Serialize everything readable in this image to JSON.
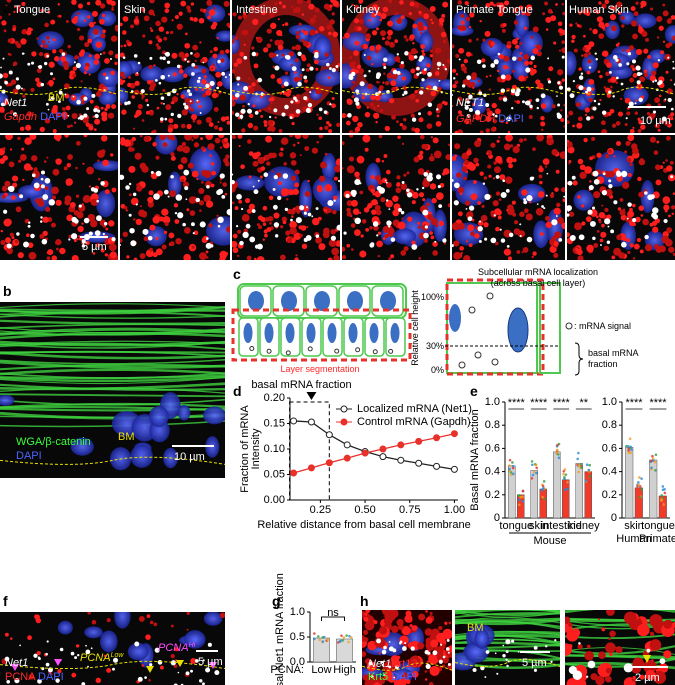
{
  "panels": {
    "a": {
      "label": "a",
      "columns": [
        "Tongue",
        "Skin",
        "Intestine",
        "Kidney",
        "Primate Tongue",
        "Human Skin"
      ],
      "mouse_stain": {
        "probe": "Net1",
        "control": "Gapdh",
        "nuclear": "DAPI"
      },
      "primate_stain": {
        "probe": "NET1",
        "control": "GAPDH",
        "nuclear": "DAPI"
      },
      "bm": "BM",
      "scale_top": "10 µm",
      "scale_bottom": "5 µm"
    },
    "b": {
      "label": "b",
      "stain": "WGA/β-catenin",
      "nuclear": "DAPI",
      "bm": "BM",
      "scale": "10 µm"
    },
    "c": {
      "label": "c",
      "title": "Subcellular mRNA localization",
      "subtitle": "(across basal cell layer)",
      "segmentation": "Layer segmentation",
      "height_label": "Relative cell height",
      "levels": [
        "100%",
        "30%",
        "0%"
      ],
      "signal_legend": ": mRNA signal",
      "fraction_label": [
        "basal mRNA",
        "fraction"
      ]
    },
    "d": {
      "label": "d"
    },
    "e": {
      "label": "e"
    },
    "f": {
      "label": "f",
      "probe": "Net1",
      "marker": "PCNA",
      "nuclear": "DAPI",
      "low": {
        "name": "PCNA",
        "sup": "Low"
      },
      "high": {
        "name": "PCNA",
        "sup": "Hi"
      },
      "scale": "5 µm"
    },
    "g": {
      "label": "g"
    },
    "h": {
      "label": "h",
      "probe": "Net1",
      "marker1": "Krt13",
      "marker2": "Krt5",
      "nuclear": "DAPI",
      "bm": "BM",
      "scale1": "5 µm",
      "scale2": "2 µm"
    }
  },
  "chart_data": [
    {
      "type": "line",
      "annotation": "basal mRNA fraction",
      "ylabel": [
        "Fraction of mRNA",
        "Intensity"
      ],
      "xlabel": "Relative distance from basal cell membrane",
      "x": [
        0.1,
        0.2,
        0.3,
        0.4,
        0.5,
        0.6,
        0.7,
        0.8,
        0.9,
        1.0
      ],
      "series": [
        {
          "name": "Localized mRNA (Net1)",
          "color": "#222222",
          "marker": "open",
          "values": [
            0.155,
            0.153,
            0.128,
            0.108,
            0.095,
            0.085,
            0.078,
            0.072,
            0.066,
            0.06
          ]
        },
        {
          "name": "Control mRNA (Gapdh)",
          "color": "#e8312b",
          "marker": "filled",
          "values": [
            0.053,
            0.063,
            0.073,
            0.082,
            0.092,
            0.1,
            0.108,
            0.115,
            0.122,
            0.13
          ]
        }
      ],
      "xlim": [
        0.08,
        1.02
      ],
      "xticks": [
        0.25,
        {
          "value": 0.5,
          "label": "0.50"
        },
        0.75,
        {
          "value": 1,
          "label": "1.00"
        }
      ],
      "ylim": [
        0,
        0.2
      ],
      "yticks": [
        {
          "value": 0,
          "label": "0.00"
        },
        0.05,
        {
          "value": 0.1,
          "label": "0.10"
        },
        0.15,
        {
          "value": 0.2,
          "label": "0.20"
        }
      ],
      "highlight_x": [
        0.1,
        0.3
      ]
    },
    {
      "type": "bar",
      "ylabel": "Basal mRNA fraction",
      "group_label": "Mouse",
      "categories": [
        "tongue",
        "skin",
        "intestine",
        "kidney"
      ],
      "series": [
        {
          "color": "#d0d0d0",
          "values": [
            0.45,
            0.41,
            0.57,
            0.47
          ]
        },
        {
          "color": "#f03a2a",
          "values": [
            0.2,
            0.25,
            0.33,
            0.4
          ]
        }
      ],
      "annotations": [
        "****",
        "****",
        "****",
        "**"
      ],
      "ylim": [
        0,
        1
      ],
      "yticks": [
        0,
        0.2,
        0.4,
        0.6,
        0.8,
        {
          "value": 1,
          "label": "1.0"
        }
      ]
    },
    {
      "type": "bar",
      "categories": [
        "skin",
        "tongue"
      ],
      "group_labels": [
        "Human",
        "Primate"
      ],
      "series": [
        {
          "color": "#d0d0d0",
          "values": [
            0.61,
            0.5
          ]
        },
        {
          "color": "#f03a2a",
          "values": [
            0.26,
            0.19
          ]
        }
      ],
      "annotations": [
        "****",
        "****"
      ],
      "ylim": [
        0,
        1
      ],
      "yticks": [
        0,
        0.2,
        0.4,
        0.6,
        0.8,
        {
          "value": 1,
          "label": "1.0"
        }
      ]
    },
    {
      "type": "bar",
      "ylabel": "Basal Net1 mRNA fraction",
      "xlabel": "PCNA:",
      "categories": [
        "Low",
        "High"
      ],
      "series": [
        {
          "color": "#d9d9d9",
          "values": [
            0.48,
            0.46
          ]
        }
      ],
      "annotations": [
        "ns"
      ],
      "bracket": true,
      "ylim": [
        0,
        1
      ],
      "yticks": [
        {
          "value": 0,
          "label": "0.0"
        },
        0.5,
        {
          "value": 1,
          "label": "1.0"
        }
      ]
    }
  ]
}
